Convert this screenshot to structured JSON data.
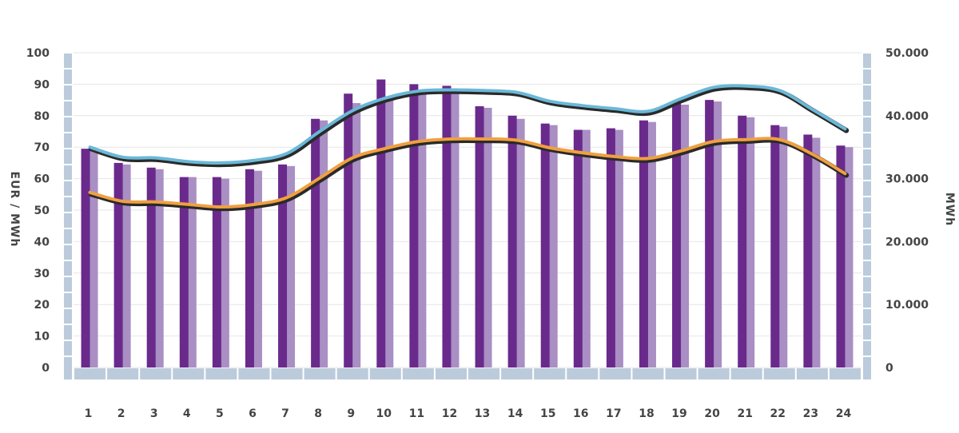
{
  "chart_data": {
    "type": "bar",
    "categories": [
      "1",
      "2",
      "3",
      "4",
      "5",
      "6",
      "7",
      "8",
      "9",
      "10",
      "11",
      "12",
      "13",
      "14",
      "15",
      "16",
      "17",
      "18",
      "19",
      "20",
      "21",
      "22",
      "23",
      "24"
    ],
    "y_left": {
      "label": "EUR / MWh",
      "ticks": [
        "0",
        "10",
        "20",
        "30",
        "40",
        "50",
        "60",
        "70",
        "80",
        "90",
        "100"
      ],
      "range": [
        0,
        100
      ]
    },
    "y_right": {
      "label": "MWh",
      "ticks": [
        "0",
        "10.000",
        "20.000",
        "30.000",
        "40.000",
        "50.000"
      ],
      "range": [
        0,
        50000
      ]
    },
    "series": [
      {
        "type": "bar",
        "axis": "left",
        "color": "#6a2a8c",
        "values": [
          69.5,
          65,
          63.5,
          60.5,
          60.5,
          63,
          64.5,
          79,
          87,
          91.5,
          90,
          89.5,
          83,
          80,
          77.5,
          75.5,
          76,
          78.5,
          84,
          85,
          80,
          77,
          74,
          70.5
        ]
      },
      {
        "type": "bar",
        "axis": "left",
        "color": "#a98fc4",
        "values": [
          69,
          64.5,
          63,
          60.5,
          60,
          62.5,
          64,
          78.5,
          84,
          86,
          88,
          88,
          82.5,
          79,
          77,
          75.5,
          75.5,
          78,
          83.5,
          84.5,
          79.5,
          76.5,
          73,
          70
        ]
      },
      {
        "type": "line",
        "axis": "right",
        "color": "#6ab8d8",
        "values": [
          35000,
          33400,
          33300,
          32700,
          32500,
          32900,
          34000,
          37500,
          40800,
          42800,
          43900,
          44100,
          44000,
          43700,
          42300,
          41600,
          41100,
          40700,
          42700,
          44500,
          44700,
          44000,
          41000,
          37900
        ]
      },
      {
        "type": "line",
        "axis": "right",
        "color": "#f0a040",
        "values": [
          27800,
          26400,
          26300,
          25900,
          25500,
          25900,
          27000,
          30100,
          33300,
          34800,
          35900,
          36300,
          36300,
          36100,
          34900,
          34100,
          33500,
          33200,
          34400,
          35900,
          36200,
          36200,
          33900,
          30800
        ]
      }
    ],
    "grid": true
  }
}
